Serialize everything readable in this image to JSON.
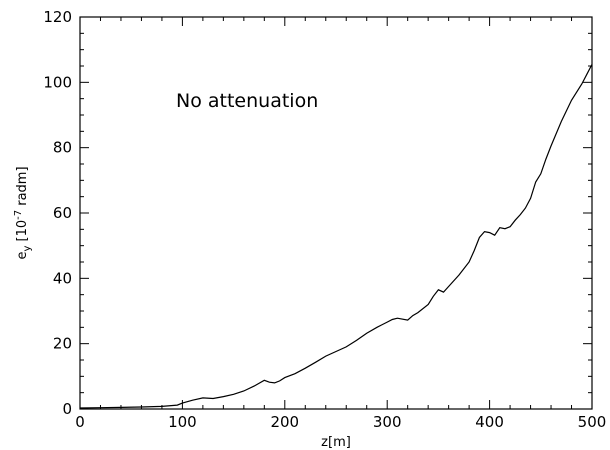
{
  "chart_data": {
    "type": "line",
    "xlabel": "z[m]",
    "ylabel": {
      "base": "e",
      "sub": "y",
      "prefix": " [10",
      "exponent": "-7",
      "suffix": " radm]"
    },
    "annotation": "No attenuation",
    "xlim": [
      0,
      500
    ],
    "ylim": [
      0,
      120
    ],
    "x_ticks": [
      0,
      100,
      200,
      300,
      400,
      500
    ],
    "y_ticks": [
      0,
      20,
      40,
      60,
      80,
      100,
      120
    ],
    "grid": false,
    "series": [
      {
        "color": "#000000",
        "points": [
          [
            0,
            0.3
          ],
          [
            20,
            0.4
          ],
          [
            40,
            0.5
          ],
          [
            60,
            0.6
          ],
          [
            80,
            0.8
          ],
          [
            95,
            1.2
          ],
          [
            100,
            1.8
          ],
          [
            110,
            2.7
          ],
          [
            120,
            3.4
          ],
          [
            130,
            3.2
          ],
          [
            140,
            3.8
          ],
          [
            150,
            4.5
          ],
          [
            160,
            5.5
          ],
          [
            170,
            7.0
          ],
          [
            180,
            8.8
          ],
          [
            185,
            8.2
          ],
          [
            190,
            8.0
          ],
          [
            195,
            8.6
          ],
          [
            200,
            9.6
          ],
          [
            210,
            10.8
          ],
          [
            220,
            12.5
          ],
          [
            230,
            14.3
          ],
          [
            240,
            16.2
          ],
          [
            250,
            17.6
          ],
          [
            260,
            19.0
          ],
          [
            270,
            21.0
          ],
          [
            280,
            23.2
          ],
          [
            290,
            25.0
          ],
          [
            300,
            26.6
          ],
          [
            305,
            27.4
          ],
          [
            310,
            27.8
          ],
          [
            320,
            27.2
          ],
          [
            325,
            28.6
          ],
          [
            330,
            29.5
          ],
          [
            340,
            32.0
          ],
          [
            345,
            34.5
          ],
          [
            350,
            36.5
          ],
          [
            355,
            35.8
          ],
          [
            360,
            37.5
          ],
          [
            370,
            41.0
          ],
          [
            380,
            45.0
          ],
          [
            385,
            48.5
          ],
          [
            390,
            52.5
          ],
          [
            395,
            54.3
          ],
          [
            400,
            54.0
          ],
          [
            405,
            53.2
          ],
          [
            410,
            55.5
          ],
          [
            415,
            55.2
          ],
          [
            420,
            55.8
          ],
          [
            425,
            57.8
          ],
          [
            430,
            59.5
          ],
          [
            435,
            61.5
          ],
          [
            440,
            64.5
          ],
          [
            445,
            69.5
          ],
          [
            450,
            72.0
          ],
          [
            455,
            76.5
          ],
          [
            460,
            80.5
          ],
          [
            470,
            88.0
          ],
          [
            480,
            94.5
          ],
          [
            490,
            99.5
          ],
          [
            495,
            102.5
          ],
          [
            500,
            105.5
          ]
        ]
      }
    ]
  }
}
